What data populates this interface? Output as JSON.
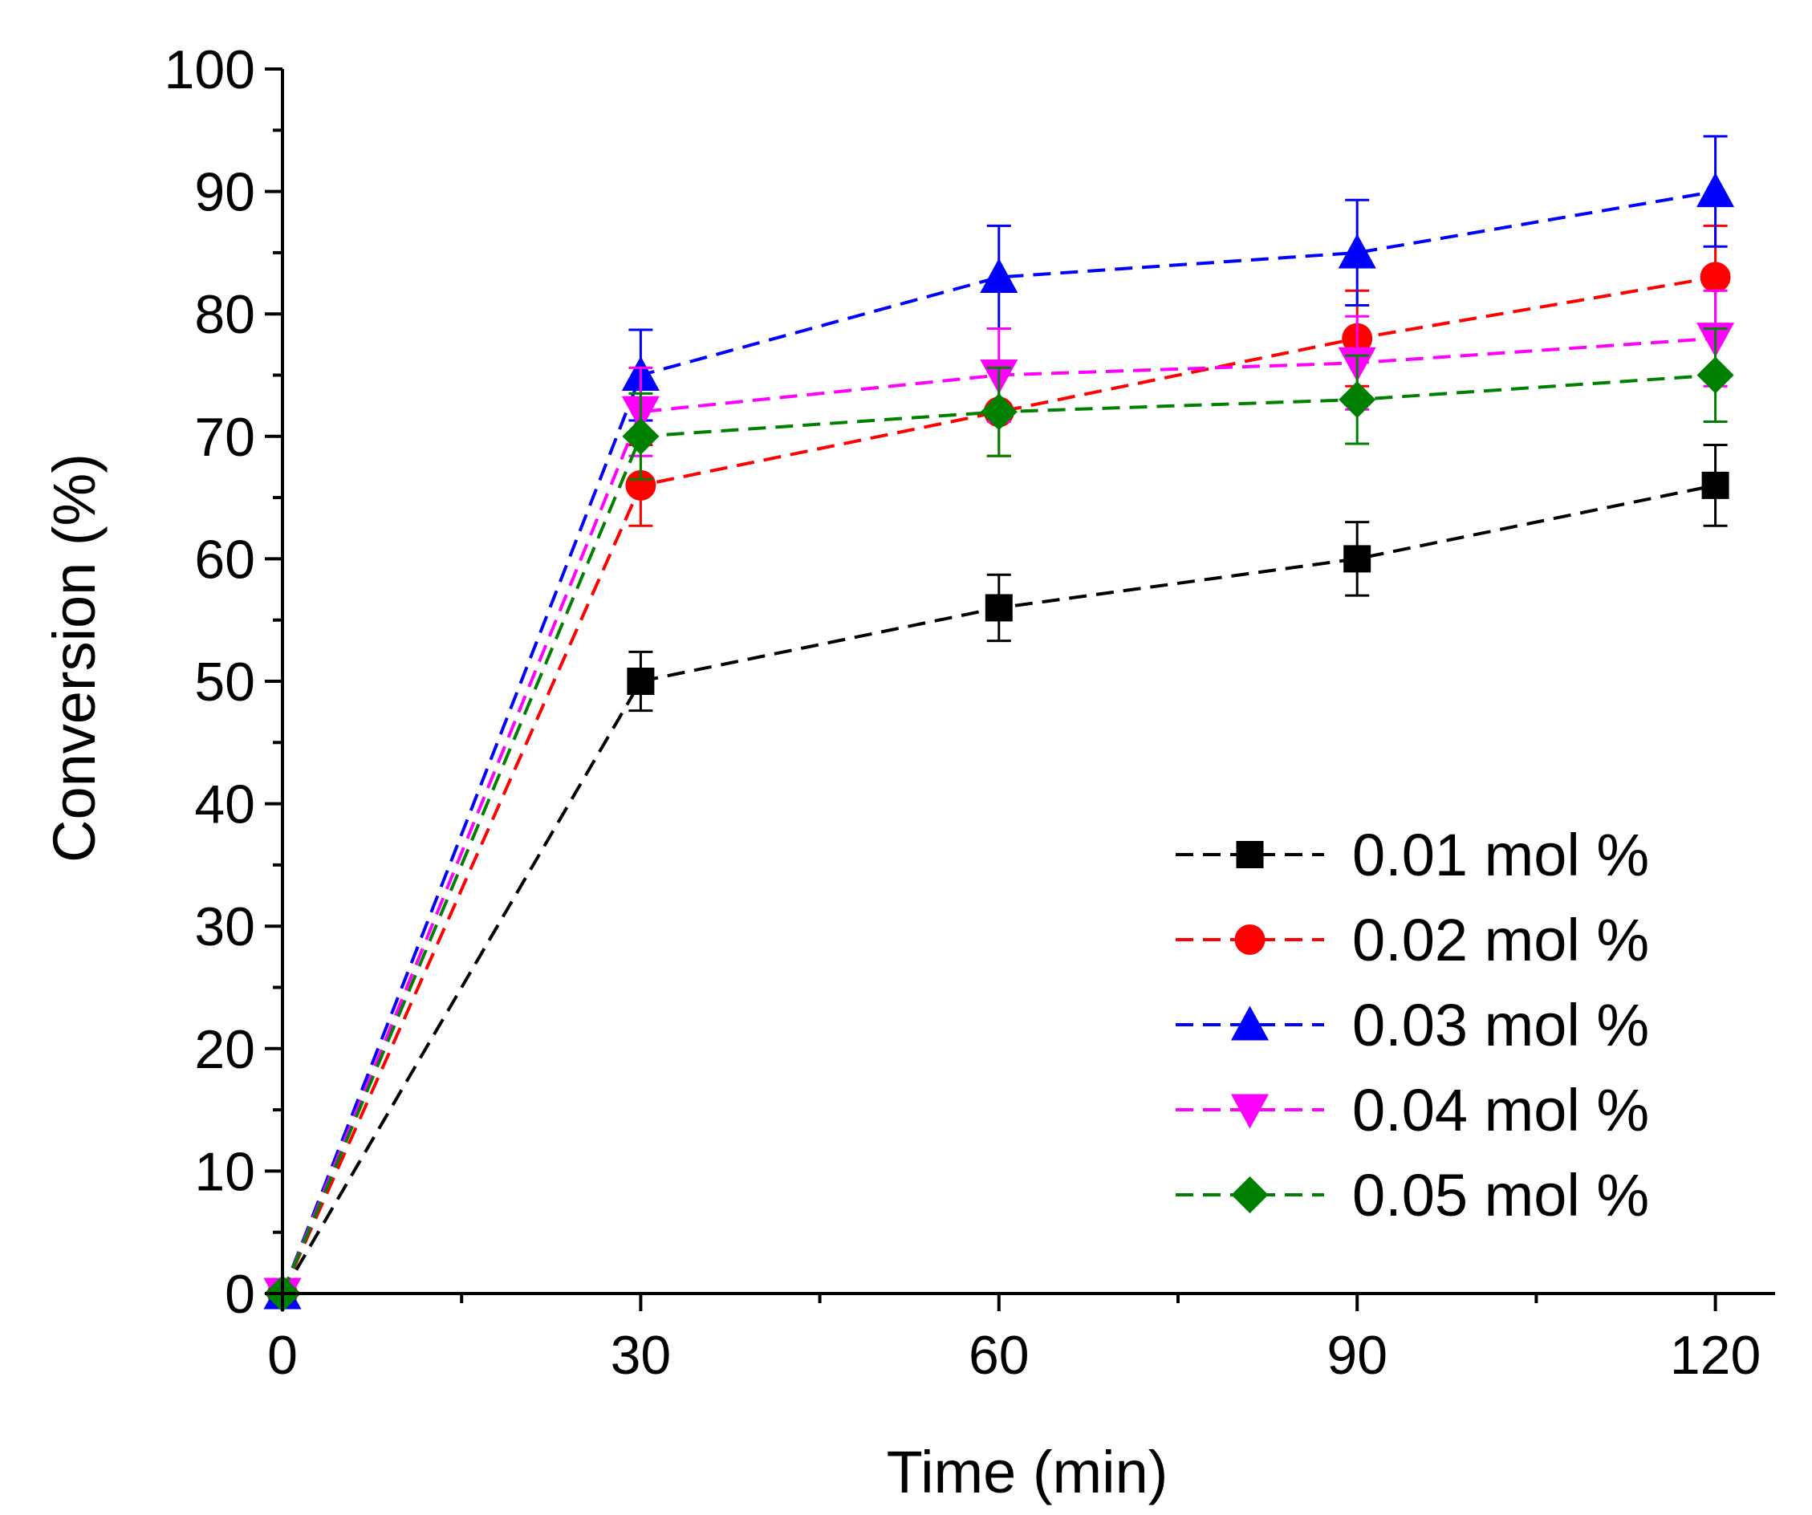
{
  "chart_data": {
    "type": "line",
    "title": "",
    "xlabel": "Time (min)",
    "ylabel": "Conversion (%)",
    "xlim": [
      0,
      125
    ],
    "ylim": [
      0,
      100
    ],
    "x_ticks": [
      0,
      30,
      60,
      90,
      120
    ],
    "y_ticks": [
      0,
      10,
      20,
      30,
      40,
      50,
      60,
      70,
      80,
      90,
      100
    ],
    "x": [
      0,
      30,
      60,
      90,
      120
    ],
    "legend_position": "bottom-right",
    "grid": false,
    "series": [
      {
        "name": "0.01 mol %",
        "values": [
          0,
          50,
          56,
          60,
          66
        ],
        "errors": [
          0,
          2.4,
          2.7,
          3.0,
          3.3
        ],
        "color": "#000000",
        "marker": "square"
      },
      {
        "name": "0.02 mol %",
        "values": [
          0,
          66,
          72,
          78,
          83
        ],
        "errors": [
          0,
          3.3,
          3.6,
          3.9,
          4.2
        ],
        "color": "#ff0000",
        "marker": "circle"
      },
      {
        "name": "0.03 mol %",
        "values": [
          0,
          75,
          83,
          85,
          90
        ],
        "errors": [
          0,
          3.7,
          4.2,
          4.3,
          4.5
        ],
        "color": "#0000ff",
        "marker": "triangle-up"
      },
      {
        "name": "0.04 mol %",
        "values": [
          0,
          72,
          75,
          76,
          78
        ],
        "errors": [
          0,
          3.6,
          3.8,
          3.8,
          3.9
        ],
        "color": "#ff00ff",
        "marker": "triangle-down"
      },
      {
        "name": "0.05 mol %",
        "values": [
          0,
          70,
          72,
          73,
          75
        ],
        "errors": [
          0,
          3.5,
          3.6,
          3.6,
          3.8
        ],
        "color": "#008000",
        "marker": "diamond"
      }
    ]
  }
}
